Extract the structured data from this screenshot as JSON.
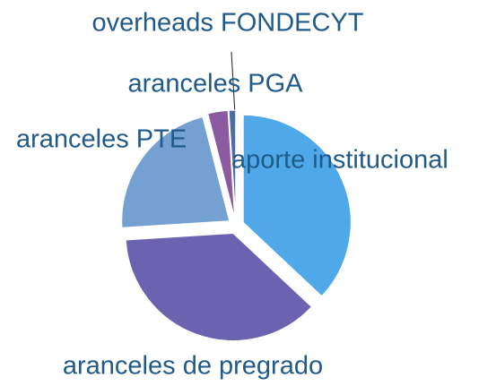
{
  "chart_data": {
    "type": "pie",
    "categories": [
      "aporte institucional",
      "aranceles de pregrado",
      "aranceles PTE",
      "aranceles PGA",
      "overheads FONDECYT"
    ],
    "values": [
      37,
      37,
      22,
      3,
      1
    ],
    "colors": [
      "#4fa9e8",
      "#6b63b0",
      "#75a0d2",
      "#8c5aa0",
      "#4b6fa3"
    ]
  }
}
